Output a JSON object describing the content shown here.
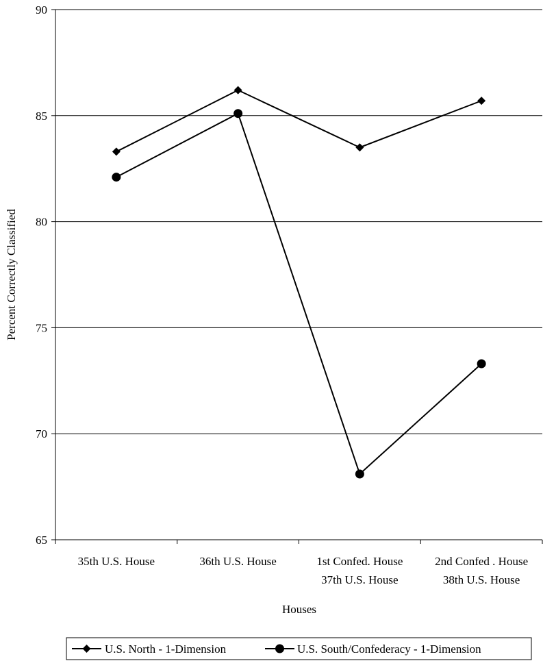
{
  "chart_data": {
    "type": "line",
    "title": "",
    "xlabel": "Houses",
    "ylabel": "Percent Correctly Classified",
    "ylim": [
      65,
      90
    ],
    "yticks": [
      65,
      70,
      75,
      80,
      85,
      90
    ],
    "grid": true,
    "legend_position": "bottom",
    "categories": [
      [
        "35th U.S. House"
      ],
      [
        "36th U.S. House"
      ],
      [
        "1st Confed. House",
        "37th U.S. House"
      ],
      [
        "2nd Confed . House",
        "38th U.S. House"
      ]
    ],
    "series": [
      {
        "name": "U.S. North - 1-Dimension",
        "marker": "diamond",
        "values": [
          83.3,
          86.2,
          83.5,
          85.7
        ]
      },
      {
        "name": "U.S. South/Confederacy - 1-Dimension",
        "marker": "circle",
        "values": [
          82.1,
          85.1,
          68.1,
          73.3
        ]
      }
    ]
  }
}
